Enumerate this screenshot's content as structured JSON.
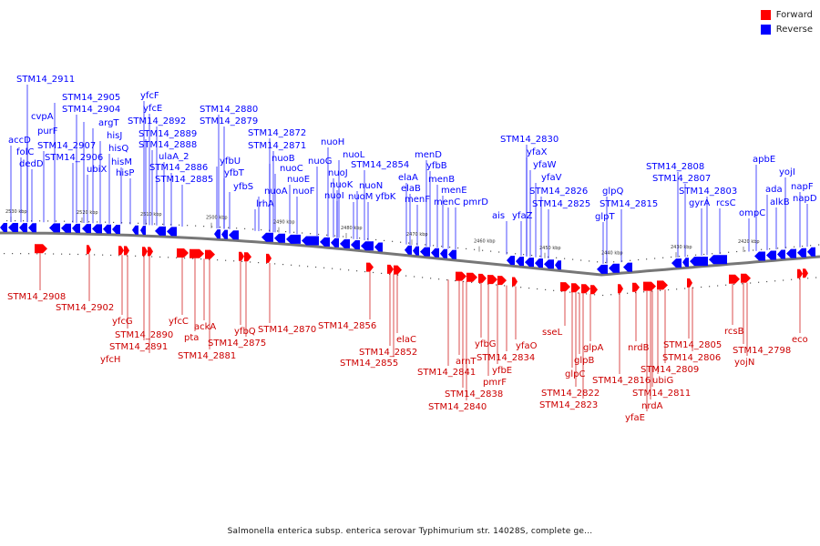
{
  "legend": {
    "forward_label": "Forward",
    "reverse_label": "Reverse",
    "forward_color": "#ff0000",
    "reverse_color": "#0000ff"
  },
  "caption": "Salmonella enterica subsp. enterica serovar Typhimurium str. 14028S, complete ge...",
  "backbone_ticks": [
    "2530 kbp",
    "2520 kbp",
    "2510 kbp",
    "2500 kbp",
    "2490 kbp",
    "2480 kbp",
    "2470 kbp",
    "2460 kbp",
    "2450 kbp",
    "2440 kbp",
    "2430 kbp",
    "2420 kbp"
  ],
  "reverse_labels": [
    "STM14_2911",
    "STM14_2905",
    "STM14_2904",
    "cvpA",
    "purF",
    "accD",
    "folC",
    "dedD",
    "STM14_2907",
    "STM14_2906",
    "ubiX",
    "argT",
    "hisJ",
    "hisQ",
    "hisM",
    "hisP",
    "yfcF",
    "yfcE",
    "STM14_2892",
    "STM14_2889",
    "STM14_2888",
    "ulaA_2",
    "STM14_2886",
    "STM14_2885",
    "STM14_2880",
    "STM14_2879",
    "yfbU",
    "yfbT",
    "yfbS",
    "STM14_2872",
    "STM14_2871",
    "nuoB",
    "nuoA",
    "lrhA",
    "nuoC",
    "nuoE",
    "nuoF",
    "nuoH",
    "nuoG",
    "nuoL",
    "nuoJ",
    "nuoK",
    "nuoI",
    "nuoN",
    "nuoM",
    "STM14_2854",
    "yfbK",
    "menD",
    "elaA",
    "elaB",
    "menF",
    "yfbB",
    "menB",
    "menE",
    "menC",
    "pmrD",
    "ais",
    "yfaZ",
    "STM14_2830",
    "yfaX",
    "yfaW",
    "yfaV",
    "STM14_2826",
    "STM14_2825",
    "glpQ",
    "glpT",
    "STM14_2815",
    "STM14_2808",
    "STM14_2807",
    "STM14_2803",
    "gyrA",
    "rcsC",
    "apbE",
    "ada",
    "alkB",
    "yojI",
    "napF",
    "napD",
    "ompC"
  ],
  "forward_labels": [
    "STM14_2908",
    "STM14_2902",
    "yfcG",
    "STM14_2890",
    "STM14_2891",
    "yfcH",
    "yfcC",
    "pta",
    "ackA",
    "STM14_2881",
    "yfbQ",
    "STM14_2875",
    "STM14_2870",
    "STM14_2856",
    "STM14_2852",
    "STM14_2855",
    "elaC",
    "STM14_2841",
    "arnT",
    "STM14_2838",
    "STM14_2840",
    "yfbG",
    "pmrF",
    "yfbE",
    "STM14_2834",
    "yfaO",
    "sseL",
    "glpC",
    "glpB",
    "glpA",
    "STM14_2822",
    "STM14_2823",
    "STM14_2816",
    "nrdB",
    "yfaE",
    "STM14_2811",
    "nrdA",
    "ubiG",
    "STM14_2809",
    "STM14_2805",
    "STM14_2806",
    "rcsB",
    "STM14_2798",
    "yojN",
    "eco"
  ]
}
